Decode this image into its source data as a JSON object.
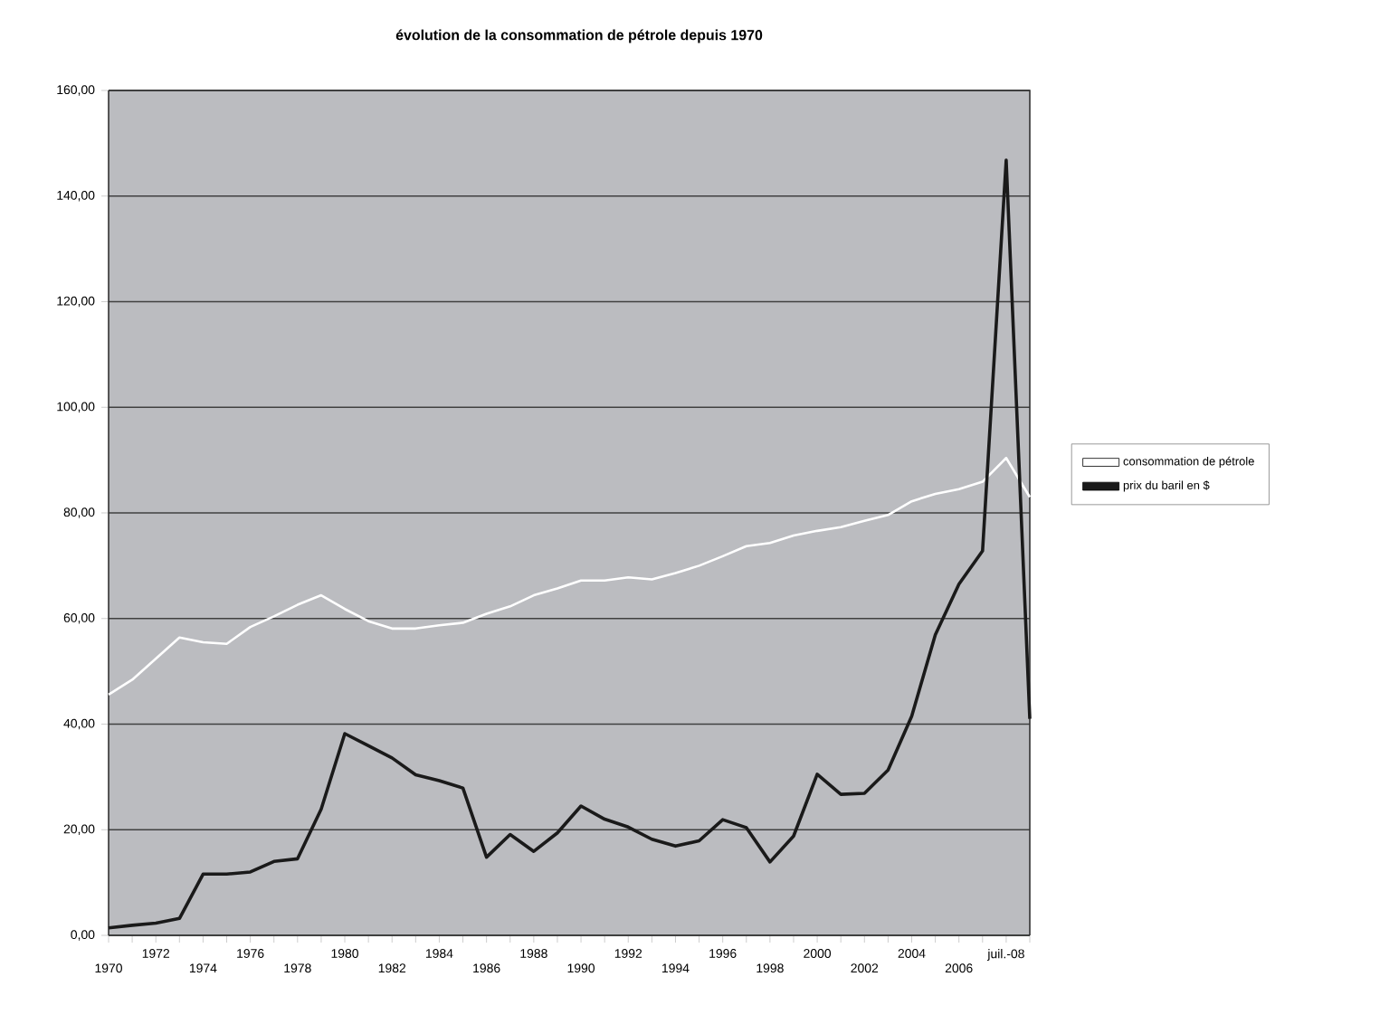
{
  "chart_data": {
    "type": "line",
    "title": "évolution de la consommation de pétrole depuis  1970",
    "categories": [
      "1970",
      null,
      "1972",
      null,
      "1974",
      null,
      "1976",
      null,
      "1978",
      null,
      "1980",
      null,
      "1982",
      null,
      "1984",
      null,
      "1986",
      null,
      "1988",
      null,
      "1990",
      null,
      "1992",
      null,
      "1994",
      null,
      "1996",
      null,
      "1998",
      null,
      "2000",
      null,
      "2002",
      null,
      "2004",
      null,
      "2006",
      null,
      "juil.-08",
      null
    ],
    "series": [
      {
        "name": "consommation de pétrole",
        "color": "#ffffff",
        "values": [
          45.6,
          48.4,
          52.4,
          56.4,
          55.5,
          55.2,
          58.4,
          60.4,
          62.6,
          64.4,
          61.8,
          59.5,
          58.1,
          58.1,
          58.7,
          59.2,
          60.9,
          62.3,
          64.4,
          65.7,
          67.2,
          67.2,
          67.8,
          67.4,
          68.6,
          70.0,
          71.8,
          73.7,
          74.3,
          75.7,
          76.6,
          77.3,
          78.5,
          79.6,
          82.2,
          83.6,
          84.5,
          85.9,
          90.4,
          83.0
        ]
      },
      {
        "name": "prix du baril en $",
        "color": "#1a1a1a",
        "values": [
          1.4,
          1.9,
          2.3,
          3.2,
          11.6,
          11.6,
          12.0,
          14.0,
          14.5,
          23.9,
          38.2,
          35.9,
          33.6,
          30.4,
          29.3,
          27.9,
          14.8,
          19.1,
          15.9,
          19.4,
          24.5,
          22.0,
          20.5,
          18.2,
          16.9,
          17.9,
          21.9,
          20.4,
          13.9,
          18.8,
          30.5,
          26.7,
          26.9,
          31.3,
          41.5,
          56.9,
          66.5,
          72.8,
          146.8,
          41.0
        ]
      }
    ],
    "ylim": [
      0,
      160
    ],
    "yticks": [
      {
        "value": 0,
        "label": "0,00"
      },
      {
        "value": 20,
        "label": "20,00"
      },
      {
        "value": 40,
        "label": "40,00"
      },
      {
        "value": 60,
        "label": "60,00"
      },
      {
        "value": 80,
        "label": "80,00"
      },
      {
        "value": 100,
        "label": "100,00"
      },
      {
        "value": 120,
        "label": "120,00"
      },
      {
        "value": 140,
        "label": "140,00"
      },
      {
        "value": 160,
        "label": "160,00"
      }
    ],
    "grid": "y",
    "legend": "right"
  }
}
